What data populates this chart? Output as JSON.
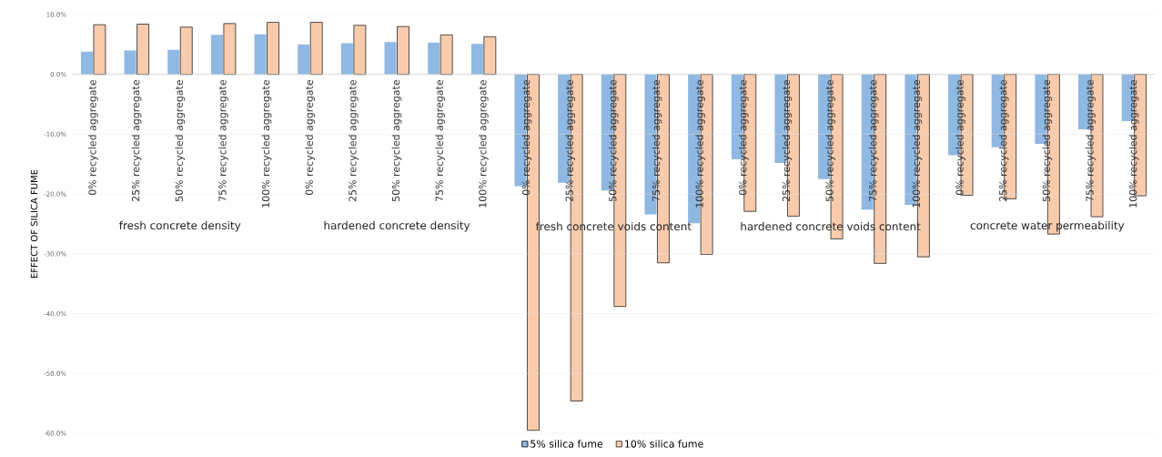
{
  "chart_data": {
    "type": "bar",
    "ylabel": "EFFECT OF SILICA FUME",
    "categories": [
      "0% recycled aggregate",
      "25% recycled aggregate",
      "50% recycled aggregate",
      "75% recycled aggregate",
      "100% recycled aggregate",
      "0% recycled aggregate",
      "25% recycled aggregate",
      "50% recycled aggregate",
      "75% recycled aggregate",
      "100% recycled aggregate",
      "0% recycled aggregate",
      "25% recycled aggregate",
      "50% recycled aggregate",
      "75% recycled aggregate",
      "100% recycled aggregate",
      "0% recycled aggregate",
      "25% recycled aggregate",
      "50% recycled aggregate",
      "75% recycled aggregate",
      "100% recycled aggregate",
      "0% recycled aggregate",
      "25% recycled aggregate",
      "50% recycled aggregate",
      "75% recycled aggregate",
      "100% recycled aggregate"
    ],
    "annotations": [
      "fresh concrete density",
      "hardened concrete density",
      "fresh concrete voids content",
      "hardened concrete voids content",
      "concrete water permeability"
    ],
    "series": [
      {
        "name": "5% silica fume",
        "color": "#8fb8e2",
        "values": [
          3.8,
          4.0,
          4.1,
          6.6,
          6.7,
          5.0,
          5.2,
          5.4,
          5.3,
          5.1,
          -18.7,
          -18.1,
          -19.4,
          -23.4,
          -24.9,
          -14.2,
          -14.8,
          -17.5,
          -22.6,
          -21.8,
          -13.5,
          -12.2,
          -11.6,
          -9.2,
          -7.8
        ]
      },
      {
        "name": "10% silica fume",
        "color": "#f8cbad",
        "values": [
          8.3,
          8.4,
          7.9,
          8.5,
          8.7,
          8.7,
          8.2,
          8.0,
          6.6,
          6.3,
          -59.5,
          -54.6,
          -38.8,
          -31.5,
          -30.1,
          -22.9,
          -23.7,
          -27.5,
          -31.6,
          -30.5,
          -20.2,
          -20.8,
          -26.7,
          -23.8,
          -20.3
        ]
      }
    ],
    "ylim": [
      -60,
      10
    ],
    "yticks": [
      {
        "value": 10,
        "label": "10.0%"
      },
      {
        "value": 0,
        "label": "0.0%"
      },
      {
        "value": -10,
        "label": "-10.0%"
      },
      {
        "value": -20,
        "label": "-20.0%"
      },
      {
        "value": -30,
        "label": "-30.0%"
      },
      {
        "value": -40,
        "label": "-40.0%"
      },
      {
        "value": -50,
        "label": "-50.0%"
      },
      {
        "value": -60,
        "label": "-60.0%"
      }
    ],
    "grid": "y",
    "legend": "bottom"
  }
}
